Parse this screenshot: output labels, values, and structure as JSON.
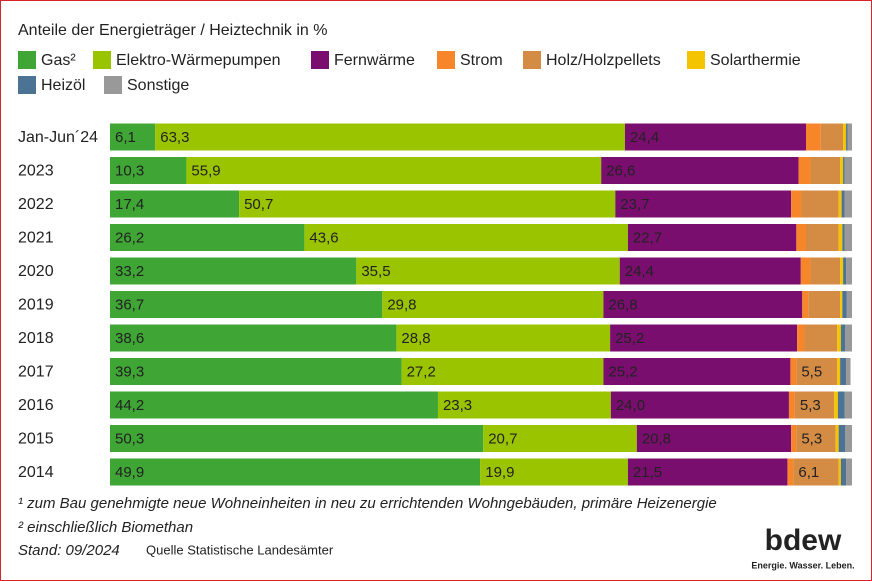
{
  "chart_data": {
    "type": "stacked-bar-horizontal",
    "title": "Anteile der Energieträger / Heiztechnik in %",
    "categories": [
      "Jan-Jun´24",
      "2023",
      "2022",
      "2021",
      "2020",
      "2019",
      "2018",
      "2017",
      "2016",
      "2015",
      "2014"
    ],
    "xlim": [
      0,
      100
    ],
    "series": [
      {
        "name": "Gas²",
        "color": "#3fa535",
        "values": [
          6.1,
          10.3,
          17.4,
          26.2,
          33.2,
          36.7,
          38.6,
          39.3,
          44.2,
          50.3,
          49.9
        ],
        "value_labels": [
          "6,1",
          "10,3",
          "17,4",
          "26,2",
          "33,2",
          "36,7",
          "38,6",
          "39,3",
          "44,2",
          "50,3",
          "49,9"
        ]
      },
      {
        "name": "Elektro-Wärmepumpen",
        "color": "#9bc400",
        "values": [
          63.3,
          55.9,
          50.7,
          43.6,
          35.5,
          29.8,
          28.8,
          27.2,
          23.3,
          20.7,
          19.9
        ],
        "value_labels": [
          "63,3",
          "55,9",
          "50,7",
          "43,6",
          "35,5",
          "29,8",
          "28,8",
          "27,2",
          "23,3",
          "20,7",
          "19,9"
        ]
      },
      {
        "name": "Fernwärme",
        "color": "#7a0e6e",
        "values": [
          24.4,
          26.6,
          23.7,
          22.7,
          24.4,
          26.8,
          25.2,
          25.2,
          24.0,
          20.8,
          21.5
        ],
        "value_labels": [
          "24,4",
          "26,6",
          "23,7",
          "22,7",
          "24,4",
          "26,8",
          "25,2",
          "25,2",
          "24,0",
          "20,8",
          "21,5"
        ]
      },
      {
        "name": "Strom",
        "color": "#f7862a",
        "values": [
          2.0,
          1.6,
          1.4,
          1.3,
          1.3,
          0.8,
          1.0,
          0.8,
          0.8,
          0.7,
          0.8
        ]
      },
      {
        "name": "Holz/Holzpellets",
        "color": "#d48c45",
        "values": [
          3.0,
          4.0,
          5.0,
          4.4,
          4.0,
          4.3,
          4.4,
          5.5,
          5.3,
          5.3,
          6.1
        ],
        "value_labels": [
          null,
          null,
          null,
          null,
          null,
          null,
          null,
          "5,5",
          "5,3",
          "5,3",
          "6,1"
        ]
      },
      {
        "name": "Solarthermie",
        "color": "#f5c400",
        "values": [
          0.4,
          0.4,
          0.4,
          0.5,
          0.4,
          0.3,
          0.5,
          0.4,
          0.5,
          0.4,
          0.3
        ]
      },
      {
        "name": "Heizöl",
        "color": "#4d7394",
        "values": [
          0.2,
          0.2,
          0.4,
          0.3,
          0.4,
          0.6,
          0.6,
          0.8,
          0.9,
          0.9,
          0.7
        ]
      },
      {
        "name": "Sonstige",
        "color": "#999999",
        "values": [
          0.6,
          1.0,
          1.0,
          1.0,
          0.8,
          0.7,
          0.9,
          0.6,
          1.0,
          0.9,
          0.8
        ]
      }
    ],
    "footnotes": [
      "¹ zum Bau genehmigte neue Wohneinheiten in neu zu errichtenden Wohngebäuden, primäre Heizenergie",
      "² einschließlich Biomethan"
    ],
    "stand": "Stand: 09/2024",
    "source": "Quelle Statistische Landesämter",
    "logo": "bdew",
    "logo_tagline": "Energie. Wasser. Leben."
  }
}
